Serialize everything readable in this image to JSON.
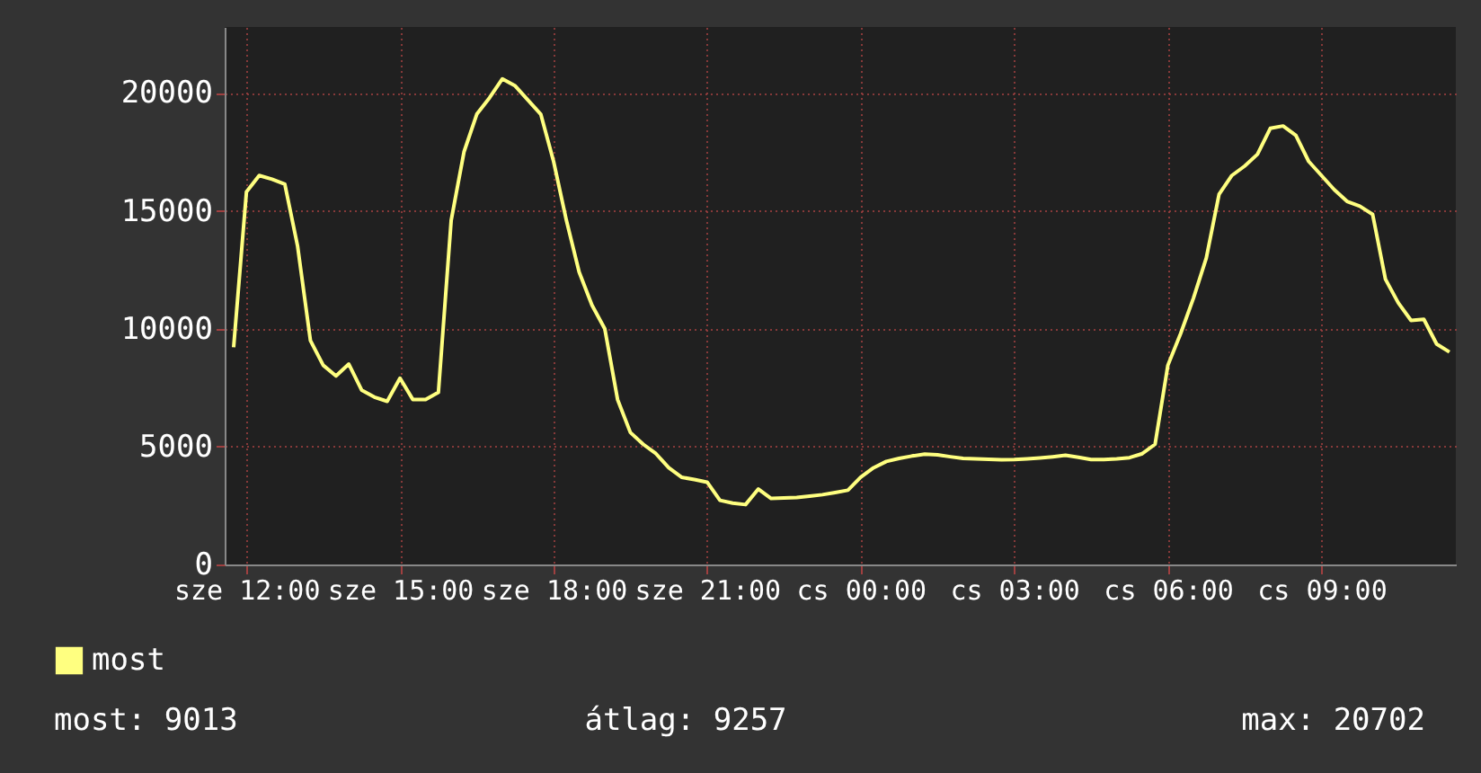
{
  "chart_data": {
    "type": "line",
    "categories": [
      null,
      "sze 12:00",
      null,
      null,
      null,
      null,
      null,
      null,
      null,
      null,
      null,
      null,
      null,
      "sze 15:00",
      null,
      null,
      null,
      null,
      null,
      null,
      null,
      null,
      null,
      null,
      null,
      "sze 18:00",
      null,
      null,
      null,
      null,
      null,
      null,
      null,
      null,
      null,
      null,
      null,
      "sze 21:00",
      null,
      null,
      null,
      null,
      null,
      null,
      null,
      null,
      null,
      null,
      null,
      "cs 00:00",
      null,
      null,
      null,
      null,
      null,
      null,
      null,
      null,
      null,
      null,
      null,
      "cs 03:00",
      null,
      null,
      null,
      null,
      null,
      null,
      null,
      null,
      null,
      null,
      null,
      "cs 06:00",
      null,
      null,
      null,
      null,
      null,
      null,
      null,
      null,
      null,
      null,
      null,
      "cs 09:00",
      null,
      null,
      null,
      null,
      null,
      null,
      null,
      null,
      null,
      null
    ],
    "series": [
      {
        "name": "most",
        "color": "#ffff80",
        "values": [
          9210,
          15800,
          16500,
          16340,
          16130,
          13500,
          9500,
          8450,
          8000,
          8500,
          7400,
          7100,
          6920,
          7900,
          7000,
          7000,
          7300,
          14600,
          17500,
          19100,
          19800,
          20600,
          20300,
          19700,
          19100,
          17100,
          14600,
          12400,
          11000,
          10000,
          7000,
          5600,
          5100,
          4700,
          4100,
          3700,
          3600,
          3490,
          2720,
          2600,
          2540,
          3200,
          2800,
          2820,
          2840,
          2900,
          2960,
          3050,
          3150,
          3700,
          4100,
          4370,
          4500,
          4600,
          4680,
          4650,
          4570,
          4500,
          4480,
          4460,
          4440,
          4450,
          4480,
          4520,
          4570,
          4630,
          4550,
          4450,
          4450,
          4480,
          4530,
          4700,
          5100,
          8450,
          9800,
          11300,
          13000,
          15700,
          16500,
          16900,
          17400,
          18500,
          18600,
          18200,
          17100,
          16500,
          15900,
          15400,
          15200,
          14850,
          12100,
          11100,
          10350,
          10400,
          9350,
          9013
        ]
      }
    ],
    "ylim": [
      0,
      22800
    ],
    "yticks": [
      0,
      5000,
      10000,
      15000,
      20000
    ],
    "grid": true,
    "legend": "bottom left",
    "annotations": [
      "most: 9013",
      "átlag: 9257",
      "max: 20702"
    ]
  }
}
